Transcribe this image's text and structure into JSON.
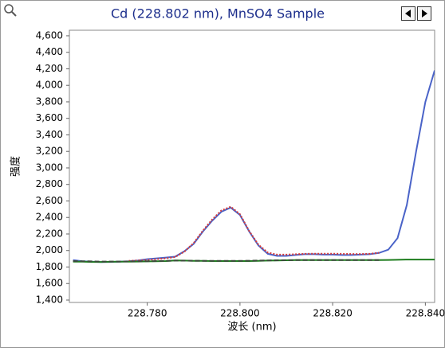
{
  "chart_data": {
    "type": "line",
    "title": "Cd (228.802 nm), MnSO4 Sample",
    "xlabel": "波长 (nm)",
    "ylabel": "强度",
    "x": [
      228.764,
      228.766,
      228.768,
      228.77,
      228.772,
      228.774,
      228.776,
      228.778,
      228.78,
      228.782,
      228.784,
      228.786,
      228.788,
      228.79,
      228.792,
      228.794,
      228.796,
      228.798,
      228.8,
      228.802,
      228.804,
      228.806,
      228.808,
      228.81,
      228.812,
      228.814,
      228.816,
      228.818,
      228.82,
      228.822,
      228.824,
      228.826,
      228.828,
      228.83,
      228.832,
      228.834,
      228.836,
      228.838,
      228.84,
      228.842
    ],
    "series": [
      {
        "color": "#4a63c8",
        "dash": "solid",
        "values": [
          1885,
          1870,
          1865,
          1860,
          1862,
          1865,
          1870,
          1880,
          1895,
          1905,
          1915,
          1925,
          1990,
          2080,
          2230,
          2360,
          2470,
          2520,
          2430,
          2230,
          2060,
          1960,
          1935,
          1935,
          1945,
          1955,
          1955,
          1950,
          1950,
          1945,
          1945,
          1950,
          1955,
          1970,
          2010,
          2150,
          2550,
          3200,
          3800,
          4180
        ]
      },
      {
        "color": "#d43c3c",
        "dash": "dotted",
        "values": [
          null,
          null,
          null,
          null,
          null,
          null,
          1875,
          1880,
          1885,
          1895,
          1905,
          1920,
          1985,
          2090,
          2240,
          2375,
          2485,
          2530,
          2440,
          2235,
          2070,
          1975,
          1950,
          1950,
          1955,
          1960,
          1962,
          1962,
          1962,
          1960,
          1958,
          1958,
          1960,
          1972,
          null,
          null,
          null,
          null,
          null,
          null
        ]
      },
      {
        "color": "#1e7d1e",
        "dash": "solid",
        "values": [
          1865,
          1865,
          1862,
          1862,
          1863,
          1864,
          1865,
          1866,
          1868,
          1870,
          1872,
          1880,
          1878,
          1875,
          1874,
          1872,
          1872,
          1872,
          1872,
          1872,
          1874,
          1878,
          1880,
          1882,
          1884,
          1885,
          1885,
          1885,
          1885,
          1885,
          1885,
          1885,
          1885,
          1885,
          1886,
          1888,
          1890,
          1890,
          1890,
          1890
        ]
      },
      {
        "color": "#3a4a3a",
        "dash": "dashed",
        "values": [
          1872,
          1870,
          1868,
          1866,
          1866,
          1866,
          1867,
          1868,
          1870,
          1872,
          1874,
          1878,
          1877,
          1876,
          1875,
          1874,
          1874,
          1874,
          1874,
          1876,
          1878,
          1880,
          1882,
          1883,
          1884,
          1885,
          1885,
          1885,
          1885,
          1885,
          1885,
          1885,
          1885,
          1885,
          null,
          null,
          null,
          null,
          null,
          null
        ]
      }
    ],
    "xlim": [
      228.7632,
      228.842
    ],
    "ylim": [
      1371,
      4667
    ],
    "xticks": [
      {
        "value": 228.78,
        "label": "228.780"
      },
      {
        "value": 228.8,
        "label": "228.800"
      },
      {
        "value": 228.82,
        "label": "228.820"
      },
      {
        "value": 228.84,
        "label": "228.840"
      }
    ],
    "yticks": [
      {
        "value": 1400,
        "label": "1,400"
      },
      {
        "value": 1600,
        "label": "1,600"
      },
      {
        "value": 1800,
        "label": "1,800"
      },
      {
        "value": 2000,
        "label": "2,000"
      },
      {
        "value": 2200,
        "label": "2,200"
      },
      {
        "value": 2400,
        "label": "2,400"
      },
      {
        "value": 2600,
        "label": "2,600"
      },
      {
        "value": 2800,
        "label": "2,800"
      },
      {
        "value": 3000,
        "label": "3,000"
      },
      {
        "value": 3200,
        "label": "3,200"
      },
      {
        "value": 3400,
        "label": "3,400"
      },
      {
        "value": 3600,
        "label": "3,600"
      },
      {
        "value": 3800,
        "label": "3,800"
      },
      {
        "value": 4000,
        "label": "4,000"
      },
      {
        "value": 4200,
        "label": "4,200"
      },
      {
        "value": 4400,
        "label": "4,400"
      },
      {
        "value": 4600,
        "label": "4,600"
      }
    ]
  }
}
